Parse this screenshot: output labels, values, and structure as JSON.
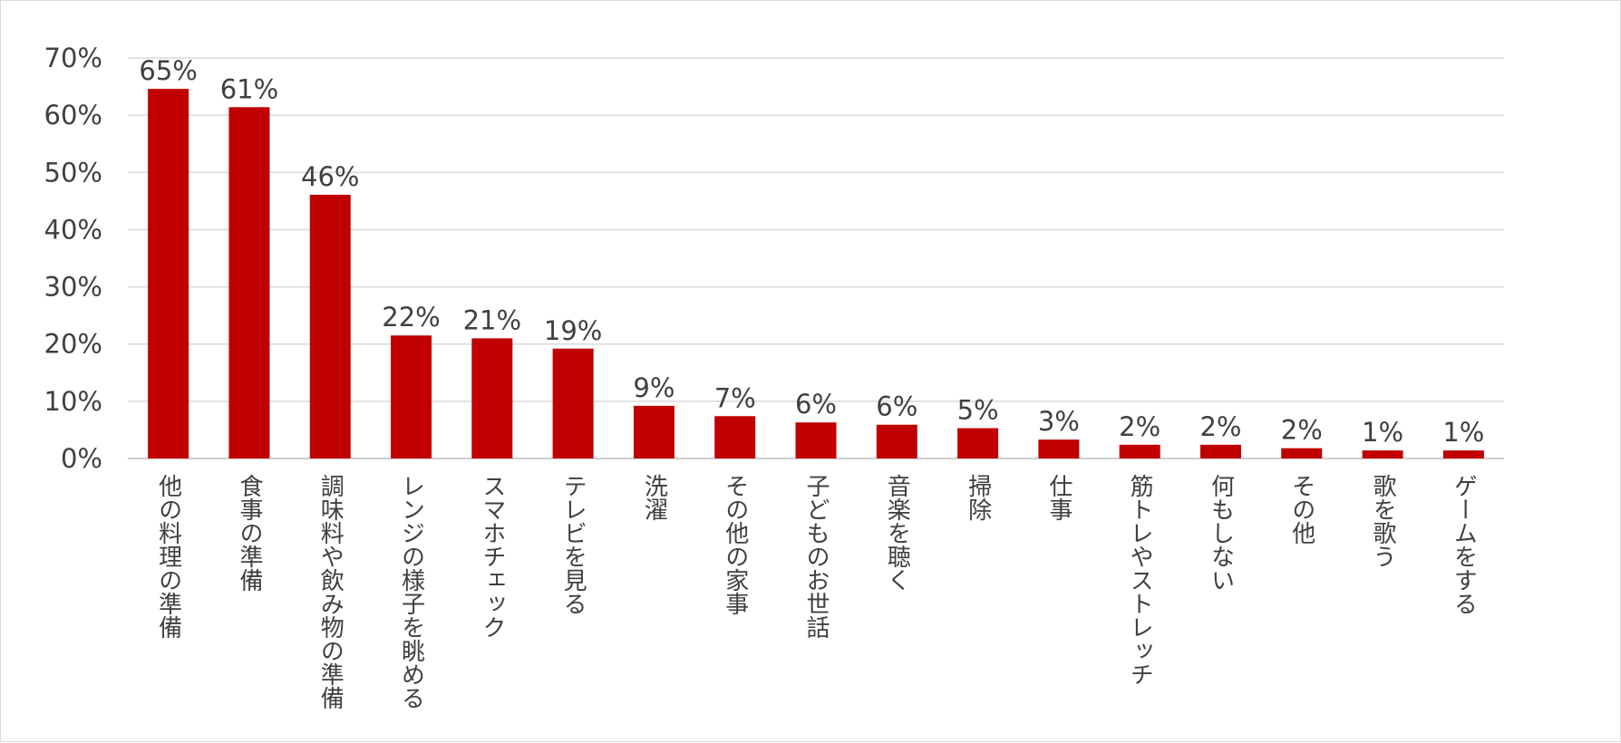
{
  "chart_data": {
    "type": "bar",
    "title": "",
    "xlabel": "",
    "ylabel": "",
    "ylim": [
      0,
      70
    ],
    "y_ticks": [
      "0%",
      "10%",
      "20%",
      "30%",
      "40%",
      "50%",
      "60%",
      "70%"
    ],
    "grid": true,
    "legend": "none",
    "bar_color": "#c00000",
    "categories": [
      "他の料理の準備",
      "食事の準備",
      "調味料や飲み物の準備",
      "レンジの様子を眺める",
      "スマホチェック",
      "テレビを見る",
      "洗濯",
      "その他の家事",
      "子どものお世話",
      "音楽を聴く",
      "掃除",
      "仕事",
      "筋トレやストレッチ",
      "何もしない",
      "その他",
      "歌を歌う",
      "ゲームをする"
    ],
    "values": [
      64.6,
      61.4,
      46.1,
      21.5,
      21.0,
      19.2,
      9.2,
      7.4,
      6.3,
      5.9,
      5.3,
      3.3,
      2.4,
      2.4,
      1.8,
      1.4,
      1.4
    ],
    "data_labels": [
      "65%",
      "61%",
      "46%",
      "22%",
      "21%",
      "19%",
      "9%",
      "7%",
      "6%",
      "6%",
      "5%",
      "3%",
      "2%",
      "2%",
      "2%",
      "1%",
      "1%"
    ]
  }
}
